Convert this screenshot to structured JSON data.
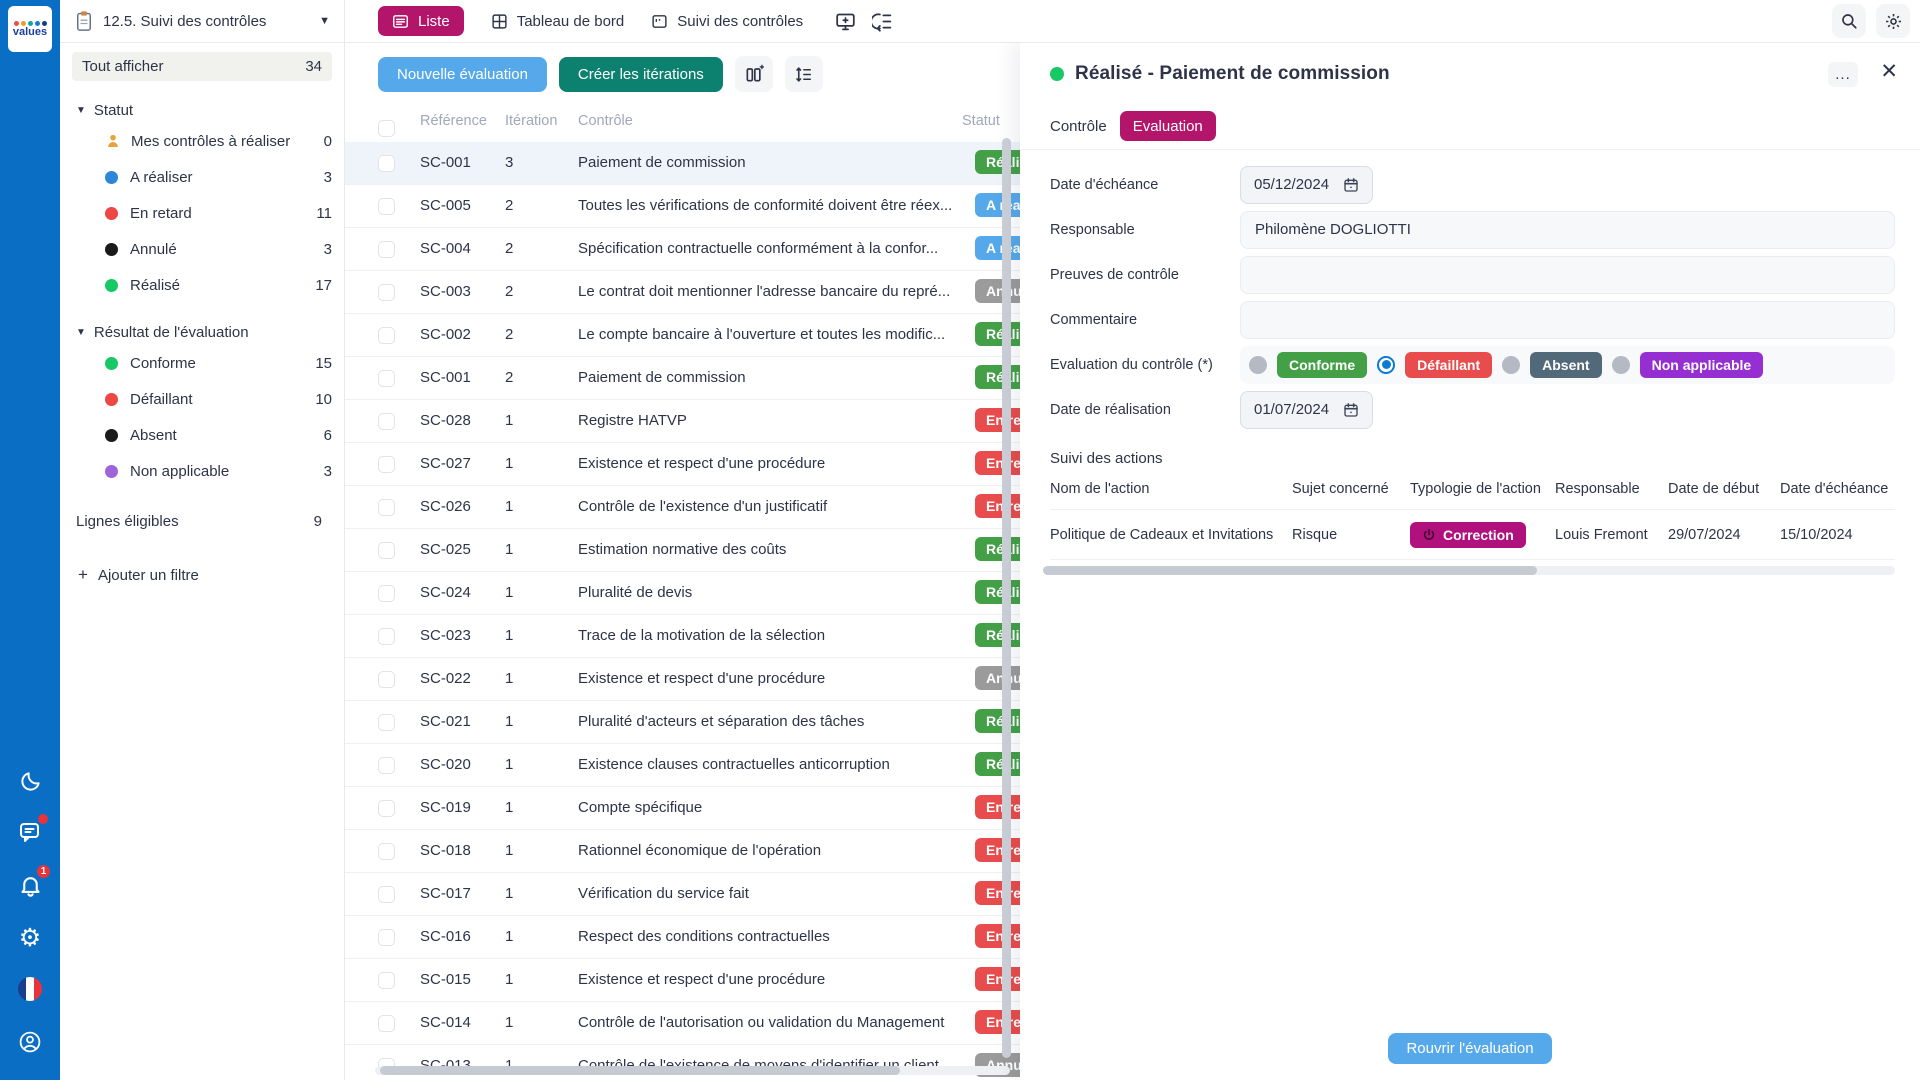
{
  "app": {
    "logo_text": "values"
  },
  "workspace": {
    "title": "12.5. Suivi des contrôles"
  },
  "topbar": {
    "tabs": [
      {
        "label": "Liste",
        "active": true
      },
      {
        "label": "Tableau de bord",
        "active": false
      },
      {
        "label": "Suivi des contrôles",
        "active": false
      }
    ]
  },
  "sidebar": {
    "show_all": {
      "label": "Tout afficher",
      "count": 34
    },
    "sections": [
      {
        "label": "Statut",
        "items": [
          {
            "label": "Mes contrôles à réaliser",
            "count": 0,
            "icon": "person",
            "color": "#e8a33d"
          },
          {
            "label": "A réaliser",
            "count": 3,
            "color": "#2e86d6"
          },
          {
            "label": "En retard",
            "count": 11,
            "color": "#ee4545"
          },
          {
            "label": "Annulé",
            "count": 3,
            "color": "#1a1a1a"
          },
          {
            "label": "Réalisé",
            "count": 17,
            "color": "#17c964"
          }
        ]
      },
      {
        "label": "Résultat de l'évaluation",
        "items": [
          {
            "label": "Conforme",
            "count": 15,
            "color": "#17c964"
          },
          {
            "label": "Défaillant",
            "count": 10,
            "color": "#ee4545"
          },
          {
            "label": "Absent",
            "count": 6,
            "color": "#1a1a1a"
          },
          {
            "label": "Non applicable",
            "count": 3,
            "color": "#a163d8"
          }
        ]
      }
    ],
    "eligible": {
      "label": "Lignes éligibles",
      "count": 9
    },
    "add_filter": "Ajouter un filtre"
  },
  "list": {
    "new_eval_button": "Nouvelle évaluation",
    "create_iter_button": "Créer les itérations",
    "columns": [
      "Référence",
      "Itération",
      "Contrôle",
      "Statut"
    ],
    "status_styles": {
      "Réalisé": "#43a047",
      "A réaliser": "#55a9ea",
      "Annulé": "#9b9b9b",
      "En retard": "#e84c4c"
    },
    "rows": [
      {
        "ref": "SC-001",
        "iteration": "3",
        "control": "Paiement de commission",
        "status": "Réalisé",
        "selected": true
      },
      {
        "ref": "SC-005",
        "iteration": "2",
        "control": "Toutes les vérifications de conformité doivent être réex...",
        "status": "A réaliser"
      },
      {
        "ref": "SC-004",
        "iteration": "2",
        "control": "Spécification contractuelle conformément à la confor...",
        "status": "A réaliser"
      },
      {
        "ref": "SC-003",
        "iteration": "2",
        "control": "Le contrat doit mentionner l'adresse bancaire du repré...",
        "status": "Annulé"
      },
      {
        "ref": "SC-002",
        "iteration": "2",
        "control": "Le compte bancaire à l'ouverture et toutes les modific...",
        "status": "Réalisé"
      },
      {
        "ref": "SC-001",
        "iteration": "2",
        "control": "Paiement de commission",
        "status": "Réalisé"
      },
      {
        "ref": "SC-028",
        "iteration": "1",
        "control": "Registre HATVP",
        "status": "En retard"
      },
      {
        "ref": "SC-027",
        "iteration": "1",
        "control": "Existence et respect d'une procédure",
        "status": "En retard"
      },
      {
        "ref": "SC-026",
        "iteration": "1",
        "control": "Contrôle de l'existence d'un justificatif",
        "status": "En retard"
      },
      {
        "ref": "SC-025",
        "iteration": "1",
        "control": "Estimation normative des coûts",
        "status": "Réalisé"
      },
      {
        "ref": "SC-024",
        "iteration": "1",
        "control": "Pluralité de devis",
        "status": "Réalisé"
      },
      {
        "ref": "SC-023",
        "iteration": "1",
        "control": "Trace de la motivation de la sélection",
        "status": "Réalisé"
      },
      {
        "ref": "SC-022",
        "iteration": "1",
        "control": "Existence et respect d'une procédure",
        "status": "Annulé"
      },
      {
        "ref": "SC-021",
        "iteration": "1",
        "control": "Pluralité d'acteurs et séparation des tâches",
        "status": "Réalisé"
      },
      {
        "ref": "SC-020",
        "iteration": "1",
        "control": "Existence clauses contractuelles anticorruption",
        "status": "Réalisé"
      },
      {
        "ref": "SC-019",
        "iteration": "1",
        "control": "Compte spécifique",
        "status": "En retard"
      },
      {
        "ref": "SC-018",
        "iteration": "1",
        "control": "Rationnel économique de l'opération",
        "status": "En retard"
      },
      {
        "ref": "SC-017",
        "iteration": "1",
        "control": "Vérification du service fait",
        "status": "En retard"
      },
      {
        "ref": "SC-016",
        "iteration": "1",
        "control": "Respect des conditions contractuelles",
        "status": "En retard"
      },
      {
        "ref": "SC-015",
        "iteration": "1",
        "control": "Existence et respect d'une procédure",
        "status": "En retard"
      },
      {
        "ref": "SC-014",
        "iteration": "1",
        "control": "Contrôle de l'autorisation ou validation du Management",
        "status": "En retard"
      },
      {
        "ref": "SC-013",
        "iteration": "1",
        "control": "Contrôle de l'existence de moyens d'identifier un client",
        "status": "Annulé"
      }
    ]
  },
  "detail": {
    "title": "Réalisé - Paiement de commission",
    "status_color": "#17c964",
    "more_label": "...",
    "close_label": "✕",
    "tabs": [
      {
        "label": "Contrôle",
        "active": false
      },
      {
        "label": "Evaluation",
        "active": true
      }
    ],
    "fields": {
      "due_date": {
        "label": "Date d'échéance",
        "value": "05/12/2024"
      },
      "responsible": {
        "label": "Responsable",
        "value": "Philomène DOGLIOTTI"
      },
      "evidence": {
        "label": "Preuves de contrôle",
        "value": ""
      },
      "comment": {
        "label": "Commentaire",
        "value": ""
      },
      "evaluation": {
        "label": "Evaluation du contrôle (*)"
      },
      "completion_date": {
        "label": "Date de réalisation",
        "value": "01/07/2024"
      }
    },
    "evaluation_options": [
      {
        "label": "Conforme",
        "color": "#43a047",
        "selected": false
      },
      {
        "label": "Défaillant",
        "color": "#e84c4c",
        "selected": true
      },
      {
        "label": "Absent",
        "color": "#52697a",
        "selected": false
      },
      {
        "label": "Non applicable",
        "color": "#962fd1",
        "selected": false
      }
    ],
    "actions": {
      "title": "Suivi des actions",
      "columns": [
        "Nom de l'action",
        "Sujet concerné",
        "Typologie de l'action",
        "Responsable",
        "Date de début",
        "Date d'échéance"
      ],
      "rows": [
        {
          "name": "Politique de Cadeaux et Invitations",
          "subject": "Risque",
          "type": "Correction",
          "type_color": "#b0117c",
          "responsible": "Louis Fremont",
          "start": "29/07/2024",
          "due": "15/10/2024"
        }
      ]
    },
    "reopen_button": "Rouvrir l'évaluation"
  }
}
